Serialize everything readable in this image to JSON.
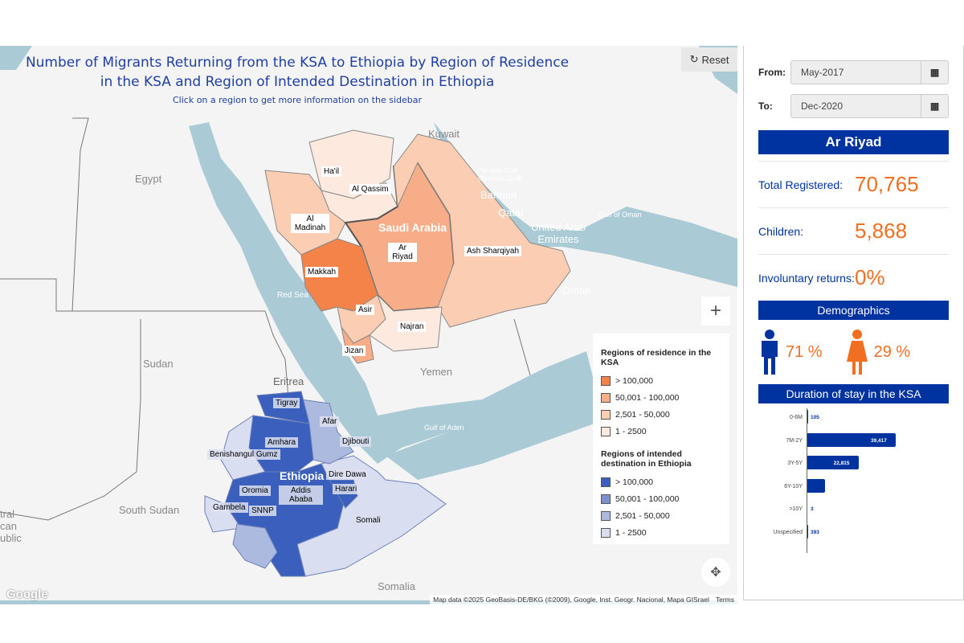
{
  "title_line1": "Number of Migrants Returning from the KSA to Ethiopia by Region of Residence",
  "title_line2": "in the KSA and Region of Intended Destination in Ethiopia",
  "subtitle": "Click on a region to get more information on the sidebar",
  "reset_label": "Reset",
  "map": {
    "geo_labels": [
      "Egypt",
      "Sudan",
      "South Sudan",
      "Eritrea",
      "Yemen",
      "Oman",
      "Somalia",
      "Kuwait",
      "Qatar",
      "United Arab Emirates",
      "Red Sea",
      "Gulf of Aden",
      "Gulf of Oman",
      "Persian Gulf (Arabian Gulf)",
      "Bahrain",
      "Djibouti",
      "tral can ublic"
    ],
    "country_labels": {
      "saudi": "Saudi Arabia",
      "ethiopia": "Ethiopia"
    },
    "ksa_regions": [
      "Ha'il",
      "Al Qassim",
      "Al Madinah",
      "Ar Riyad",
      "Makkah",
      "Ash Sharqiyah",
      "Asir",
      "Najran",
      "Jizan"
    ],
    "eth_regions": [
      "Tigray",
      "Afar",
      "Amhara",
      "Benishangul Gumz",
      "Oromia",
      "Addis Ababa",
      "Dire Dawa",
      "Harari",
      "Gambela",
      "SNNP",
      "Somali",
      "Djibouti"
    ],
    "attribution": "Map data ©2025 GeoBasis-DE/BKG (©2009), Google, Inst. Geogr. Nacional, Mapa GISrael",
    "terms": "Terms",
    "google": "Google"
  },
  "legend": {
    "ksa_title": "Regions of residence in the KSA",
    "eth_title": "Regions of intended destination in Ethiopia",
    "ksa": [
      {
        "label": "> 100,000",
        "color": "#f4834a"
      },
      {
        "label": "50,001 - 100,000",
        "color": "#f7ae88"
      },
      {
        "label": "2,501 - 50,000",
        "color": "#fbceb4"
      },
      {
        "label": "1 - 2500",
        "color": "#fde9de"
      }
    ],
    "eth": [
      {
        "label": "> 100,000",
        "color": "#3b5fbd"
      },
      {
        "label": "50,001 - 100,000",
        "color": "#7b90cc"
      },
      {
        "label": "2,501 - 50,000",
        "color": "#acbadf"
      },
      {
        "label": "1 - 2500",
        "color": "#d9def0"
      }
    ]
  },
  "sidebar": {
    "from_label": "From:",
    "from_value": "May-2017",
    "to_label": "To:",
    "to_value": "Dec-2020",
    "region": "Ar Riyad",
    "total_label": "Total Registered:",
    "total_value": "70,765",
    "children_label": "Children:",
    "children_value": "5,868",
    "invol_label": "Involuntary returns:",
    "invol_value": "0%",
    "demographics": "Demographics",
    "male_pct": "71  %",
    "female_pct": "29  %",
    "duration_title": "Duration of stay in the KSA"
  },
  "chart_data": {
    "type": "bar",
    "orientation": "horizontal",
    "categories": [
      "0-6M",
      "7M-2Y",
      "3Y-5Y",
      "6Y-10Y",
      ">10Y",
      "Unspecified"
    ],
    "values": [
      105,
      39417,
      22815,
      8032,
      3,
      393
    ],
    "data_labels": [
      "105",
      "39,417",
      "22,815",
      "",
      "3",
      "393"
    ],
    "color": "#0033a0"
  }
}
